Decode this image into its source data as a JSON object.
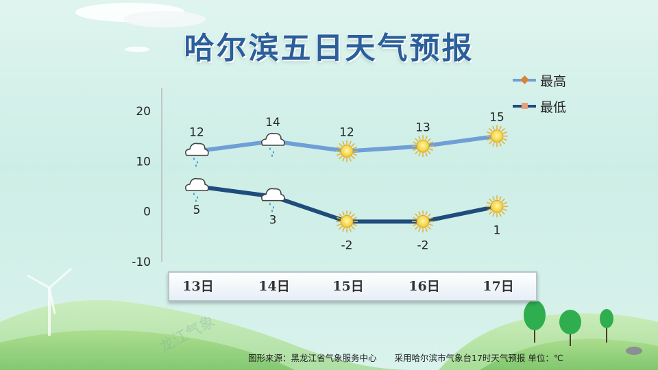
{
  "title": "哈尔滨五日天气预报",
  "legend": [
    {
      "label": "最高",
      "line_color": "#6f9fd6",
      "marker_color": "#d9823a"
    },
    {
      "label": "最低",
      "line_color": "#1f4c7c",
      "marker_color": "#e8a07a"
    }
  ],
  "footer": {
    "source": "图形来源：黑龙江省气象服务中心",
    "note": "采用哈尔滨市气象台17时天气预报 单位：℃"
  },
  "watermark": "龙江气象",
  "chart_data": {
    "type": "line",
    "categories": [
      "13日",
      "14日",
      "15日",
      "16日",
      "17日"
    ],
    "ylim": [
      -10,
      20
    ],
    "yticks": [
      -10,
      0,
      10,
      20
    ],
    "series": [
      {
        "name": "最高",
        "values": [
          12,
          14,
          12,
          13,
          15
        ],
        "color": "#6f9fd6",
        "icons": [
          "rain-cloud-icon",
          "rain-cloud-icon",
          "sun-icon",
          "sun-icon",
          "sun-icon"
        ]
      },
      {
        "name": "最低",
        "values": [
          5,
          3,
          -2,
          -2,
          1
        ],
        "color": "#1f4c7c",
        "icons": [
          "rain-cloud-icon",
          "rain-cloud-icon",
          "sun-icon",
          "sun-icon",
          "sun-icon"
        ]
      }
    ],
    "legend_position": "top-right",
    "grid": false
  }
}
